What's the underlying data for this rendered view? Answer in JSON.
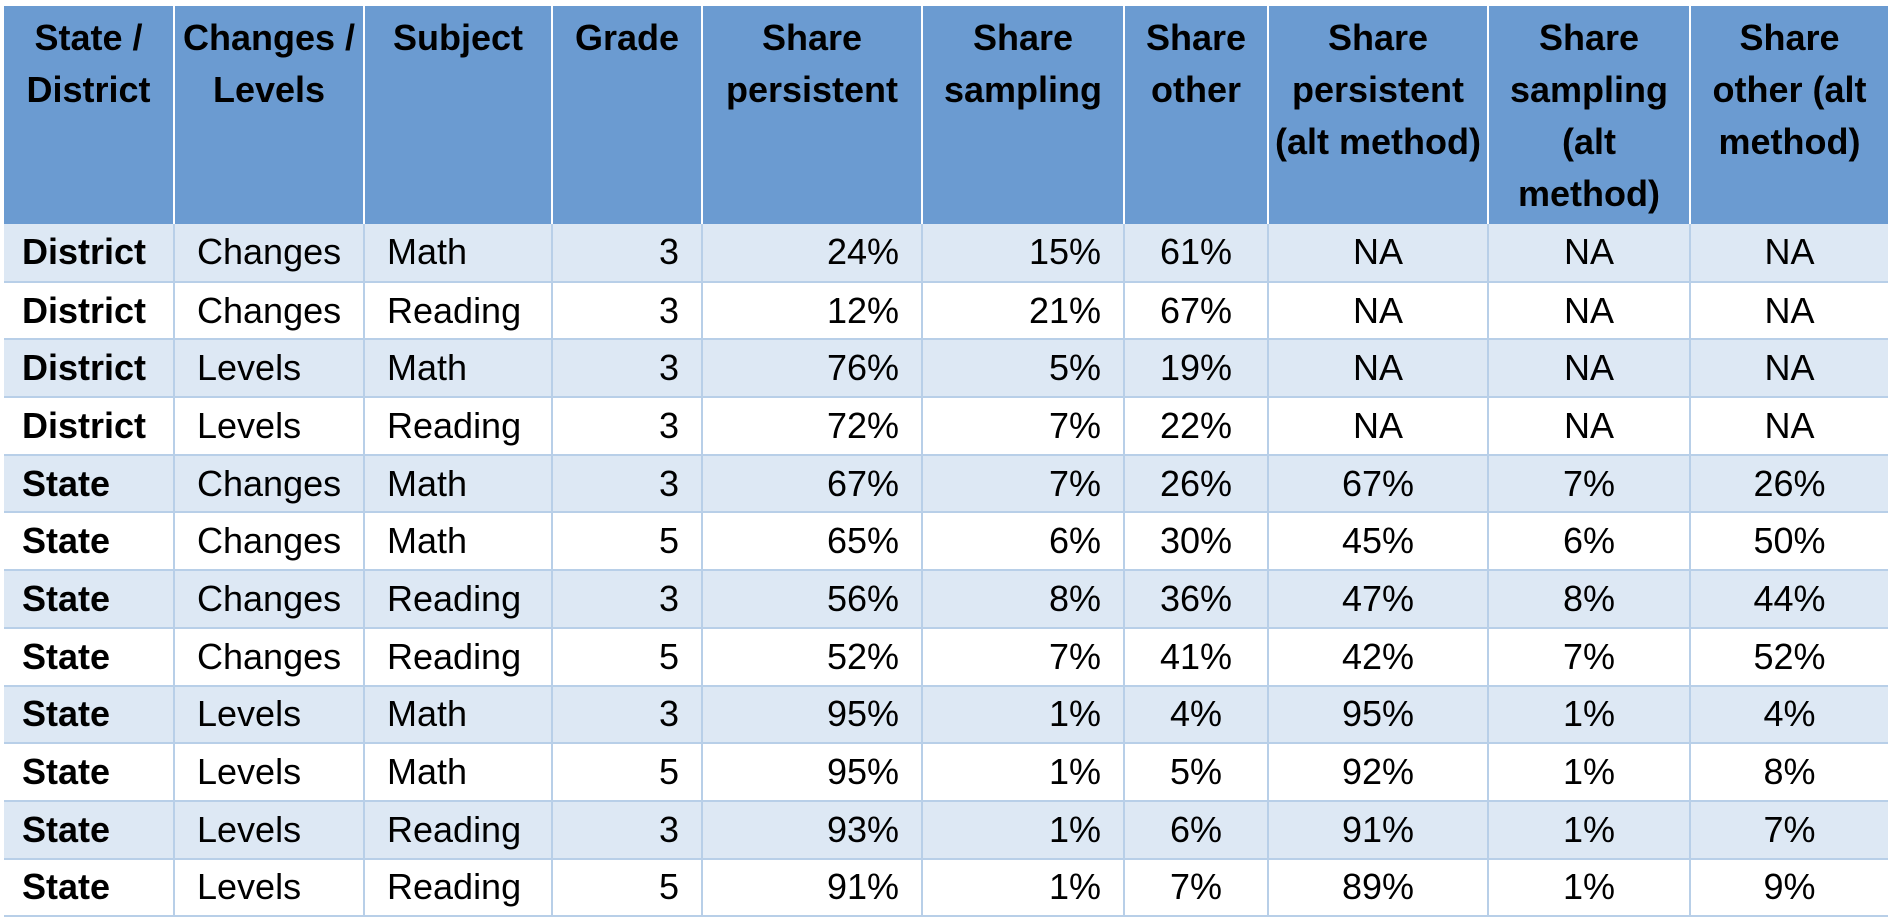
{
  "table": {
    "headers": [
      "State / District",
      "Changes / Levels",
      "Subject",
      "Grade",
      "Share persistent",
      "Share sampling",
      "Share other",
      "Share persistent (alt method)",
      "Share sampling (alt method)",
      "Share other (alt method)"
    ],
    "rows": [
      [
        "District",
        "Changes",
        "Math",
        "3",
        "24%",
        "15%",
        "61%",
        "NA",
        "NA",
        "NA"
      ],
      [
        "District",
        "Changes",
        "Reading",
        "3",
        "12%",
        "21%",
        "67%",
        "NA",
        "NA",
        "NA"
      ],
      [
        "District",
        "Levels",
        "Math",
        "3",
        "76%",
        "5%",
        "19%",
        "NA",
        "NA",
        "NA"
      ],
      [
        "District",
        "Levels",
        "Reading",
        "3",
        "72%",
        "7%",
        "22%",
        "NA",
        "NA",
        "NA"
      ],
      [
        "State",
        "Changes",
        "Math",
        "3",
        "67%",
        "7%",
        "26%",
        "67%",
        "7%",
        "26%"
      ],
      [
        "State",
        "Changes",
        "Math",
        "5",
        "65%",
        "6%",
        "30%",
        "45%",
        "6%",
        "50%"
      ],
      [
        "State",
        "Changes",
        "Reading",
        "3",
        "56%",
        "8%",
        "36%",
        "47%",
        "8%",
        "44%"
      ],
      [
        "State",
        "Changes",
        "Reading",
        "5",
        "52%",
        "7%",
        "41%",
        "42%",
        "7%",
        "52%"
      ],
      [
        "State",
        "Levels",
        "Math",
        "3",
        "95%",
        "1%",
        "4%",
        "95%",
        "1%",
        "4%"
      ],
      [
        "State",
        "Levels",
        "Math",
        "5",
        "95%",
        "1%",
        "5%",
        "92%",
        "1%",
        "8%"
      ],
      [
        "State",
        "Levels",
        "Reading",
        "3",
        "93%",
        "1%",
        "6%",
        "91%",
        "1%",
        "7%"
      ],
      [
        "State",
        "Levels",
        "Reading",
        "5",
        "91%",
        "1%",
        "7%",
        "89%",
        "1%",
        "9%"
      ]
    ]
  }
}
